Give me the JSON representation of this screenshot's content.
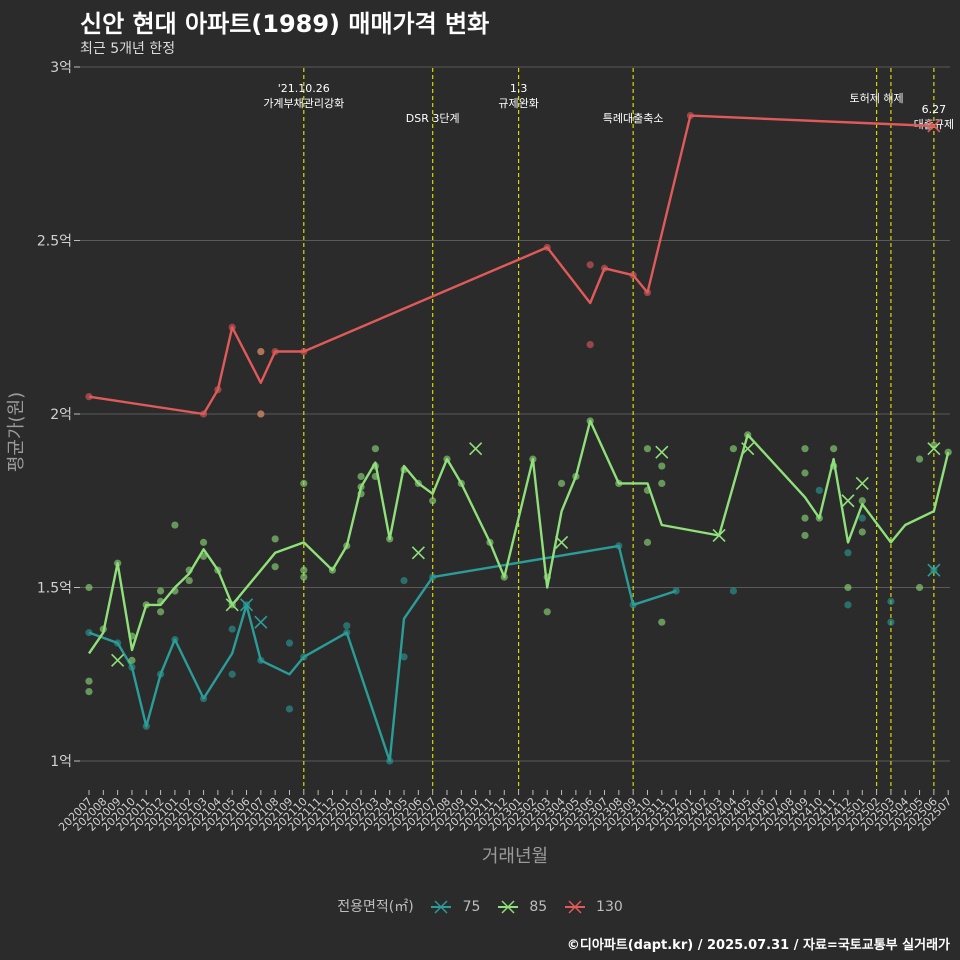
{
  "title": "신안 현대 아파트(1989) 매매가격 변화",
  "subtitle": "최근 5개년 한정",
  "caption": "©디아파트(dapt.kr) / 2025.07.31 / 자료=국토교통부 실거래가",
  "colors": {
    "background": "#2b2b2b",
    "grid": "#5a5a5a",
    "vline": "#d8d800",
    "s75": "#2a9d98",
    "s85": "#8fe07a",
    "s130": "#e05a5a"
  },
  "chart_data": {
    "type": "line",
    "title": "신안 현대 아파트(1989) 매매가격 변화",
    "subtitle": "최근 5개년 한정",
    "xlabel": "거래년월",
    "ylabel": "평균가(원)",
    "ylim": [
      0.92,
      3.0
    ],
    "y_ticks": [
      1,
      1.5,
      2,
      2.5,
      3
    ],
    "y_tick_labels": [
      "1억",
      "1.5억",
      "2억",
      "2.5억",
      "3억"
    ],
    "x_ticks": [
      "202007",
      "202008",
      "202009",
      "202010",
      "202011",
      "202012",
      "202101",
      "202102",
      "202103",
      "202104",
      "202105",
      "202106",
      "202107",
      "202108",
      "202109",
      "202110",
      "202111",
      "202112",
      "202201",
      "202202",
      "202203",
      "202204",
      "202205",
      "202206",
      "202207",
      "202208",
      "202209",
      "202210",
      "202211",
      "202212",
      "202301",
      "202302",
      "202303",
      "202304",
      "202305",
      "202306",
      "202307",
      "202308",
      "202309",
      "202310",
      "202311",
      "202312",
      "202401",
      "202402",
      "202403",
      "202404",
      "202405",
      "202406",
      "202407",
      "202408",
      "202409",
      "202410",
      "202411",
      "202412",
      "202501",
      "202502",
      "202503",
      "202504",
      "202505",
      "202506",
      "202507"
    ],
    "legend": {
      "title": "전용면적(㎡)",
      "position": "bottom",
      "items": [
        "75",
        "85",
        "130"
      ]
    },
    "grid": true,
    "events": [
      {
        "x": "202110",
        "label": "'21.10.26\n가계부채관리강화"
      },
      {
        "x": "202207",
        "label": "DSR 3단계"
      },
      {
        "x": "202301",
        "label": "1.3\n규제완화"
      },
      {
        "x": "202309",
        "label": "특례대출축소"
      },
      {
        "x": "202502",
        "label": "토허제 해제"
      },
      {
        "x": "202503",
        "label": ""
      },
      {
        "x": "202506",
        "label": "6.27\n대출규제"
      }
    ],
    "series": [
      {
        "name": "75",
        "color": "#2a9d98",
        "line": [
          [
            "202007",
            1.37
          ],
          [
            "202009",
            1.34
          ],
          [
            "202010",
            1.27
          ],
          [
            "202011",
            1.1
          ],
          [
            "202012",
            1.25
          ],
          [
            "202101",
            1.35
          ],
          [
            "202103",
            1.18
          ],
          [
            "202105",
            1.31
          ],
          [
            "202106",
            1.45
          ],
          [
            "202107",
            1.29
          ],
          [
            "202109",
            1.25
          ],
          [
            "202110",
            1.3
          ],
          [
            "202201",
            1.37
          ],
          [
            "202204",
            1.0
          ],
          [
            "202205",
            1.41
          ],
          [
            "202207",
            1.53
          ],
          [
            "202308",
            1.62
          ],
          [
            "202309",
            1.45
          ],
          [
            "202312",
            1.49
          ]
        ],
        "points": [
          [
            "202007",
            1.37
          ],
          [
            "202009",
            1.34
          ],
          [
            "202010",
            1.27
          ],
          [
            "202011",
            1.1
          ],
          [
            "202012",
            1.25
          ],
          [
            "202101",
            1.35
          ],
          [
            "202103",
            1.18
          ],
          [
            "202105",
            1.25
          ],
          [
            "202105",
            1.38
          ],
          [
            "202106",
            1.45
          ],
          [
            "202107",
            1.29
          ],
          [
            "202109",
            1.15
          ],
          [
            "202109",
            1.34
          ],
          [
            "202110",
            1.3
          ],
          [
            "202201",
            1.37
          ],
          [
            "202201",
            1.39
          ],
          [
            "202204",
            1.0
          ],
          [
            "202205",
            1.52
          ],
          [
            "202205",
            1.3
          ],
          [
            "202207",
            1.53
          ],
          [
            "202308",
            1.62
          ],
          [
            "202309",
            1.45
          ],
          [
            "202312",
            1.49
          ],
          [
            "202404",
            1.49
          ],
          [
            "202410",
            1.78
          ],
          [
            "202412",
            1.6
          ],
          [
            "202412",
            1.45
          ],
          [
            "202501",
            1.7
          ],
          [
            "202503",
            1.4
          ],
          [
            "202503",
            1.46
          ],
          [
            "202506",
            1.55
          ]
        ],
        "crosses": [
          [
            "202106",
            1.45
          ],
          [
            "202107",
            1.4
          ],
          [
            "202506",
            1.55
          ]
        ]
      },
      {
        "name": "85",
        "color": "#8fe07a",
        "line": [
          [
            "202007",
            1.31
          ],
          [
            "202008",
            1.37
          ],
          [
            "202009",
            1.57
          ],
          [
            "202010",
            1.32
          ],
          [
            "202011",
            1.45
          ],
          [
            "202012",
            1.45
          ],
          [
            "202101",
            1.5
          ],
          [
            "202102",
            1.54
          ],
          [
            "202103",
            1.61
          ],
          [
            "202104",
            1.55
          ],
          [
            "202105",
            1.45
          ],
          [
            "202108",
            1.6
          ],
          [
            "202110",
            1.63
          ],
          [
            "202112",
            1.55
          ],
          [
            "202201",
            1.62
          ],
          [
            "202202",
            1.79
          ],
          [
            "202203",
            1.86
          ],
          [
            "202204",
            1.64
          ],
          [
            "202205",
            1.85
          ],
          [
            "202206",
            1.8
          ],
          [
            "202207",
            1.77
          ],
          [
            "202208",
            1.87
          ],
          [
            "202209",
            1.8
          ],
          [
            "202211",
            1.63
          ],
          [
            "202212",
            1.53
          ],
          [
            "202302",
            1.87
          ],
          [
            "202303",
            1.5
          ],
          [
            "202304",
            1.72
          ],
          [
            "202305",
            1.82
          ],
          [
            "202306",
            1.98
          ],
          [
            "202308",
            1.8
          ],
          [
            "202310",
            1.8
          ],
          [
            "202311",
            1.68
          ],
          [
            "202403",
            1.65
          ],
          [
            "202405",
            1.94
          ],
          [
            "202409",
            1.76
          ],
          [
            "202410",
            1.7
          ],
          [
            "202411",
            1.87
          ],
          [
            "202412",
            1.63
          ],
          [
            "202501",
            1.74
          ],
          [
            "202503",
            1.63
          ],
          [
            "202504",
            1.68
          ],
          [
            "202506",
            1.72
          ],
          [
            "202507",
            1.89
          ]
        ],
        "points": [
          [
            "202007",
            1.5
          ],
          [
            "202007",
            1.23
          ],
          [
            "202007",
            1.2
          ],
          [
            "202008",
            1.38
          ],
          [
            "202009",
            1.57
          ],
          [
            "202010",
            1.36
          ],
          [
            "202010",
            1.29
          ],
          [
            "202011",
            1.45
          ],
          [
            "202012",
            1.49
          ],
          [
            "202012",
            1.46
          ],
          [
            "202012",
            1.43
          ],
          [
            "202101",
            1.49
          ],
          [
            "202101",
            1.68
          ],
          [
            "202102",
            1.55
          ],
          [
            "202102",
            1.52
          ],
          [
            "202103",
            1.63
          ],
          [
            "202103",
            1.59
          ],
          [
            "202104",
            1.55
          ],
          [
            "202105",
            1.45
          ],
          [
            "202107",
            2.0
          ],
          [
            "202107",
            2.18
          ],
          [
            "202108",
            1.64
          ],
          [
            "202108",
            1.56
          ],
          [
            "202110",
            1.8
          ],
          [
            "202110",
            1.55
          ],
          [
            "202110",
            1.53
          ],
          [
            "202112",
            1.55
          ],
          [
            "202201",
            1.62
          ],
          [
            "202202",
            1.82
          ],
          [
            "202202",
            1.77
          ],
          [
            "202202",
            1.79
          ],
          [
            "202203",
            1.9
          ],
          [
            "202203",
            1.85
          ],
          [
            "202203",
            1.82
          ],
          [
            "202204",
            1.64
          ],
          [
            "202205",
            1.84
          ],
          [
            "202206",
            1.8
          ],
          [
            "202207",
            1.75
          ],
          [
            "202208",
            1.87
          ],
          [
            "202209",
            1.8
          ],
          [
            "202211",
            1.63
          ],
          [
            "202212",
            1.53
          ],
          [
            "202302",
            1.87
          ],
          [
            "202303",
            1.43
          ],
          [
            "202303",
            1.53
          ],
          [
            "202304",
            1.8
          ],
          [
            "202305",
            1.82
          ],
          [
            "202306",
            1.98
          ],
          [
            "202308",
            1.8
          ],
          [
            "202310",
            1.9
          ],
          [
            "202310",
            1.78
          ],
          [
            "202310",
            1.63
          ],
          [
            "202311",
            1.85
          ],
          [
            "202311",
            1.8
          ],
          [
            "202311",
            1.4
          ],
          [
            "202405",
            1.94
          ],
          [
            "202404",
            1.9
          ],
          [
            "202409",
            1.9
          ],
          [
            "202409",
            1.83
          ],
          [
            "202409",
            1.7
          ],
          [
            "202409",
            1.65
          ],
          [
            "202410",
            1.7
          ],
          [
            "202411",
            1.9
          ],
          [
            "202411",
            1.85
          ],
          [
            "202412",
            1.5
          ],
          [
            "202501",
            1.66
          ],
          [
            "202501",
            1.75
          ],
          [
            "202505",
            1.87
          ],
          [
            "202505",
            1.5
          ],
          [
            "202506",
            1.91
          ],
          [
            "202507",
            1.89
          ]
        ],
        "crosses": [
          [
            "202009",
            1.29
          ],
          [
            "202105",
            1.45
          ],
          [
            "202206",
            1.6
          ],
          [
            "202210",
            1.9
          ],
          [
            "202304",
            1.63
          ],
          [
            "202311",
            1.89
          ],
          [
            "202403",
            1.65
          ],
          [
            "202405",
            1.9
          ],
          [
            "202412",
            1.75
          ],
          [
            "202501",
            1.8
          ],
          [
            "202506",
            1.9
          ]
        ]
      },
      {
        "name": "130",
        "color": "#e05a5a",
        "line": [
          [
            "202007",
            2.05
          ],
          [
            "202103",
            2.0
          ],
          [
            "202104",
            2.07
          ],
          [
            "202105",
            2.25
          ],
          [
            "202107",
            2.09
          ],
          [
            "202108",
            2.18
          ],
          [
            "202110",
            2.18
          ],
          [
            "202303",
            2.48
          ],
          [
            "202306",
            2.32
          ],
          [
            "202307",
            2.42
          ],
          [
            "202309",
            2.4
          ],
          [
            "202310",
            2.35
          ],
          [
            "202401",
            2.86
          ],
          [
            "202506",
            2.83
          ]
        ],
        "points": [
          [
            "202007",
            2.05
          ],
          [
            "202103",
            2.0
          ],
          [
            "202104",
            2.07
          ],
          [
            "202105",
            2.25
          ],
          [
            "202107",
            2.18
          ],
          [
            "202107",
            2.0
          ],
          [
            "202108",
            2.18
          ],
          [
            "202110",
            2.18
          ],
          [
            "202303",
            2.48
          ],
          [
            "202306",
            2.43
          ],
          [
            "202306",
            2.2
          ],
          [
            "202307",
            2.42
          ],
          [
            "202309",
            2.4
          ],
          [
            "202310",
            2.35
          ],
          [
            "202401",
            2.86
          ]
        ],
        "crosses": [
          [
            "202506",
            2.83
          ]
        ]
      }
    ]
  }
}
